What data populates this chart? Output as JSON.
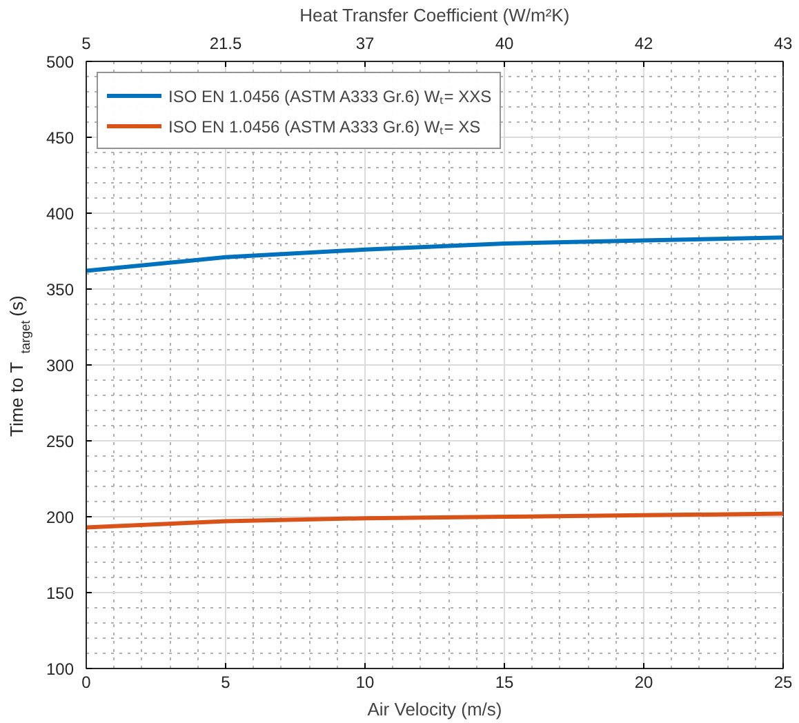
{
  "chart_data": {
    "type": "line",
    "xlabel": "Air Velocity (m/s)",
    "ylabel": "Time to T$_{target}$ (s)",
    "x2label": "Heat Transfer Coefficient (W/m²K)",
    "x": [
      0,
      5,
      10,
      15,
      20,
      25
    ],
    "series": [
      {
        "name": "ISO EN 1.0456 (ASTM A333 Gr.6) Wₜ= XXS",
        "color": "#0072bd",
        "values": [
          362,
          371,
          376,
          380,
          382,
          384
        ]
      },
      {
        "name": "ISO EN 1.0456 (ASTM A333 Gr.6) Wₜ= XS",
        "color": "#d95319",
        "values": [
          193,
          197,
          199,
          200,
          201,
          202
        ]
      }
    ],
    "xlim": [
      0,
      25
    ],
    "xticks": [
      0,
      5,
      10,
      15,
      20,
      25
    ],
    "ylim": [
      100,
      500
    ],
    "yticks": [
      100,
      150,
      200,
      250,
      300,
      350,
      400,
      450,
      500
    ],
    "annotations": [
      "5",
      "21.5",
      "37",
      "40",
      "42",
      "43"
    ],
    "grid": true,
    "legend": "top left",
    "marker": "none",
    "line_style": "solid"
  }
}
